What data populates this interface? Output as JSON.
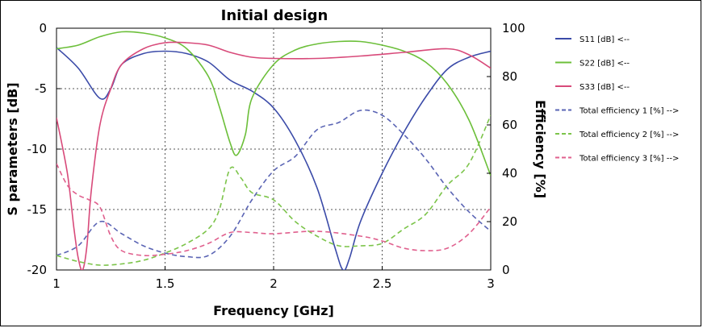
{
  "chart_data": {
    "type": "line",
    "title": "Initial design",
    "xlabel": "Frequency [GHz]",
    "ylabel_left": "S parameters [dB]",
    "ylabel_right": "Efficiency [%]",
    "xlim": [
      1,
      3
    ],
    "ylim_left": [
      -20,
      0
    ],
    "ylim_right": [
      0,
      100
    ],
    "x_ticks": [
      "1",
      "1.5",
      "2",
      "2.5",
      "3"
    ],
    "y_left_ticks": [
      "0",
      "-5",
      "-10",
      "-15",
      "-20"
    ],
    "y_right_ticks": [
      "100",
      "80",
      "60",
      "40",
      "20",
      "0"
    ],
    "grid": true,
    "legend_position": "right",
    "series": [
      {
        "name": "S11 [dB] <--",
        "axis": "left",
        "style": "solid",
        "color": "#3a4aa8",
        "x": [
          1.0,
          1.1,
          1.2,
          1.25,
          1.3,
          1.4,
          1.5,
          1.6,
          1.7,
          1.8,
          1.9,
          2.0,
          2.1,
          2.2,
          2.28,
          2.32,
          2.35,
          2.4,
          2.5,
          2.6,
          2.7,
          2.8,
          2.9,
          3.0
        ],
        "y": [
          -1.6,
          -3.3,
          -5.8,
          -5.0,
          -3.0,
          -2.1,
          -1.9,
          -2.1,
          -2.8,
          -4.3,
          -5.2,
          -6.6,
          -9.3,
          -13.2,
          -18.0,
          -20.0,
          -19.0,
          -16.0,
          -12.0,
          -8.6,
          -5.7,
          -3.4,
          -2.4,
          -1.9
        ]
      },
      {
        "name": "S22 [dB] <--",
        "axis": "left",
        "style": "solid",
        "color": "#6cbf3a",
        "x": [
          1.0,
          1.1,
          1.2,
          1.3,
          1.4,
          1.5,
          1.6,
          1.7,
          1.75,
          1.8,
          1.83,
          1.87,
          1.9,
          2.0,
          2.1,
          2.2,
          2.3,
          2.4,
          2.5,
          2.6,
          2.7,
          2.8,
          2.9,
          3.0
        ],
        "y": [
          -1.7,
          -1.4,
          -0.7,
          -0.3,
          -0.4,
          -0.8,
          -1.7,
          -4.0,
          -6.5,
          -9.5,
          -10.5,
          -8.8,
          -5.8,
          -3.0,
          -1.8,
          -1.3,
          -1.1,
          -1.1,
          -1.4,
          -1.9,
          -2.8,
          -4.6,
          -7.6,
          -12.2
        ]
      },
      {
        "name": "S33 [dB] <--",
        "axis": "left",
        "style": "solid",
        "color": "#d84a7a",
        "x": [
          1.0,
          1.05,
          1.08,
          1.1,
          1.12,
          1.14,
          1.16,
          1.2,
          1.25,
          1.3,
          1.4,
          1.5,
          1.6,
          1.7,
          1.8,
          1.9,
          2.0,
          2.2,
          2.4,
          2.6,
          2.8,
          2.9,
          3.0
        ],
        "y": [
          -7.4,
          -12.0,
          -16.5,
          -19.0,
          -20.0,
          -18.0,
          -13.5,
          -8.0,
          -5.0,
          -3.0,
          -1.7,
          -1.2,
          -1.2,
          -1.4,
          -2.0,
          -2.4,
          -2.5,
          -2.5,
          -2.3,
          -2.0,
          -1.7,
          -2.2,
          -3.3
        ]
      },
      {
        "name": "Total efficiency 1 [%] -->",
        "axis": "right",
        "style": "dashed",
        "color": "#5a64b4",
        "x": [
          1.0,
          1.1,
          1.2,
          1.3,
          1.4,
          1.5,
          1.6,
          1.7,
          1.8,
          1.9,
          2.0,
          2.1,
          2.2,
          2.3,
          2.4,
          2.5,
          2.6,
          2.7,
          2.8,
          2.9,
          3.0
        ],
        "y": [
          6,
          10,
          20,
          15,
          10,
          7,
          5.5,
          6,
          14,
          29,
          41,
          47,
          58,
          61,
          66,
          64,
          56,
          46,
          34,
          24,
          16
        ]
      },
      {
        "name": "Total efficiency 2 [%] -->",
        "axis": "right",
        "style": "dashed",
        "color": "#7cc44a",
        "x": [
          1.0,
          1.1,
          1.2,
          1.3,
          1.4,
          1.5,
          1.6,
          1.7,
          1.75,
          1.8,
          1.85,
          1.9,
          2.0,
          2.1,
          2.2,
          2.3,
          2.4,
          2.5,
          2.6,
          2.7,
          2.8,
          2.9,
          3.0
        ],
        "y": [
          6,
          3.5,
          2,
          2.5,
          4,
          7,
          11,
          17,
          25,
          42,
          38,
          32,
          29,
          20,
          14,
          10,
          10,
          11,
          17,
          23,
          35,
          44,
          64
        ]
      },
      {
        "name": "Total efficiency 3 [%] -->",
        "axis": "right",
        "style": "dashed",
        "color": "#e0608e",
        "x": [
          1.0,
          1.05,
          1.1,
          1.15,
          1.2,
          1.25,
          1.3,
          1.4,
          1.5,
          1.6,
          1.7,
          1.8,
          1.9,
          2.0,
          2.2,
          2.4,
          2.5,
          2.6,
          2.7,
          2.8,
          2.9,
          3.0
        ],
        "y": [
          44,
          35,
          31,
          29,
          26,
          14,
          8,
          6,
          6.5,
          8,
          11,
          15.5,
          15.5,
          15,
          16,
          14,
          12,
          9,
          8,
          9,
          15,
          26
        ]
      }
    ]
  }
}
